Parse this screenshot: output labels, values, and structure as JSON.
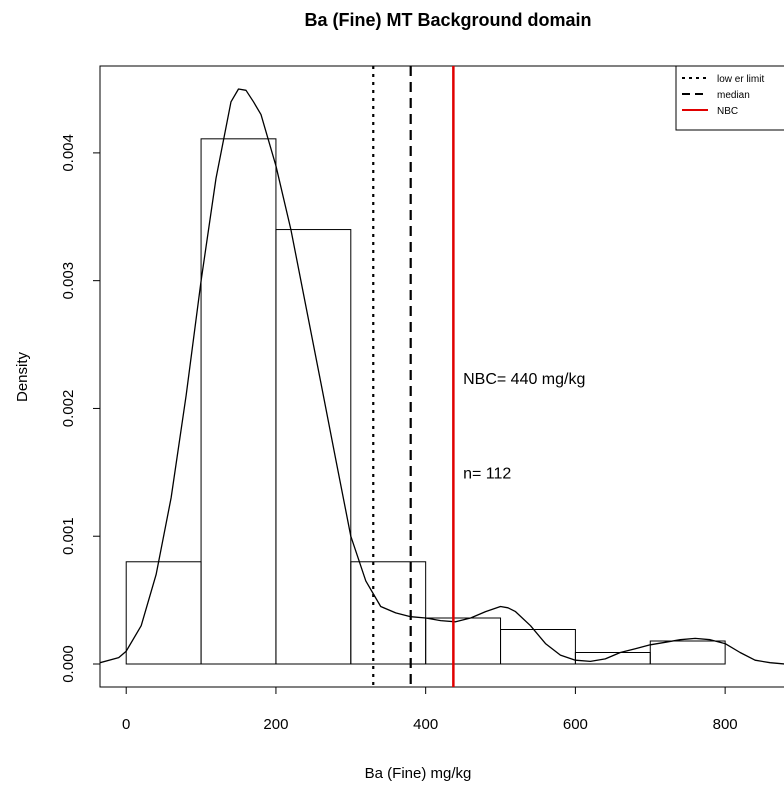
{
  "chart_data": {
    "type": "histogram",
    "title": "Ba (Fine) MT Background domain",
    "xlabel": "Ba (Fine) mg/kg",
    "ylabel": "Density",
    "xlim": [
      -35,
      900
    ],
    "ylim": [
      -0.00018,
      0.00468
    ],
    "xticks": [
      0,
      200,
      400,
      600,
      800
    ],
    "yticks": [
      0.0,
      0.001,
      0.002,
      0.003,
      0.004
    ],
    "xtick_labels": [
      "0",
      "200",
      "400",
      "600",
      "800"
    ],
    "ytick_labels": [
      "0.000",
      "0.001",
      "0.002",
      "0.003",
      "0.004"
    ],
    "bins": [
      {
        "x0": 0,
        "x1": 100,
        "density": 0.0008
      },
      {
        "x0": 100,
        "x1": 200,
        "density": 0.00411
      },
      {
        "x0": 200,
        "x1": 300,
        "density": 0.0034
      },
      {
        "x0": 300,
        "x1": 400,
        "density": 0.0008
      },
      {
        "x0": 400,
        "x1": 500,
        "density": 0.00036
      },
      {
        "x0": 500,
        "x1": 600,
        "density": 0.00027
      },
      {
        "x0": 600,
        "x1": 700,
        "density": 9e-05
      },
      {
        "x0": 700,
        "x1": 800,
        "density": 0.00018
      }
    ],
    "density_curve": {
      "x": [
        -35,
        -10,
        0,
        20,
        40,
        60,
        80,
        100,
        120,
        140,
        150,
        160,
        170,
        180,
        200,
        220,
        240,
        260,
        280,
        300,
        320,
        340,
        360,
        380,
        400,
        420,
        440,
        460,
        480,
        500,
        510,
        520,
        540,
        560,
        580,
        600,
        620,
        640,
        660,
        680,
        700,
        720,
        740,
        760,
        780,
        800,
        820,
        840,
        860,
        880
      ],
      "y": [
        1e-05,
        5e-05,
        0.0001,
        0.0003,
        0.0007,
        0.0013,
        0.0021,
        0.003,
        0.0038,
        0.0044,
        0.0045,
        0.00449,
        0.0044,
        0.0043,
        0.0039,
        0.0034,
        0.0028,
        0.0022,
        0.0016,
        0.001,
        0.00065,
        0.00045,
        0.0004,
        0.00037,
        0.00036,
        0.00034,
        0.00033,
        0.00036,
        0.00041,
        0.00045,
        0.00044,
        0.00041,
        0.0003,
        0.00016,
        7e-05,
        3e-05,
        2e-05,
        4e-05,
        9e-05,
        0.00012,
        0.00015,
        0.00017,
        0.00019,
        0.0002,
        0.00019,
        0.00016,
        9e-05,
        3e-05,
        1e-05,
        0.0
      ],
      "baseline_from": 880
    },
    "vlines": [
      {
        "name": "lower limit",
        "x": 330,
        "style": "dotted",
        "color": "#000000"
      },
      {
        "name": "median",
        "x": 380,
        "style": "dashed",
        "color": "#000000"
      },
      {
        "name": "NBC",
        "x": 437,
        "style": "solid",
        "color": "#e00000"
      }
    ],
    "annotations": [
      {
        "text": "NBC= 440 mg/kg",
        "x": 450,
        "y": 0.00219
      },
      {
        "text": "n= 112",
        "x": 450,
        "y": 0.00145
      }
    ],
    "legend": {
      "position": "top-right",
      "entries": [
        {
          "label": "low er limit",
          "style": "dotted",
          "color": "#000000"
        },
        {
          "label": "median",
          "style": "dashed",
          "color": "#000000"
        },
        {
          "label": "NBC",
          "style": "solid",
          "color": "#e00000"
        }
      ]
    }
  }
}
